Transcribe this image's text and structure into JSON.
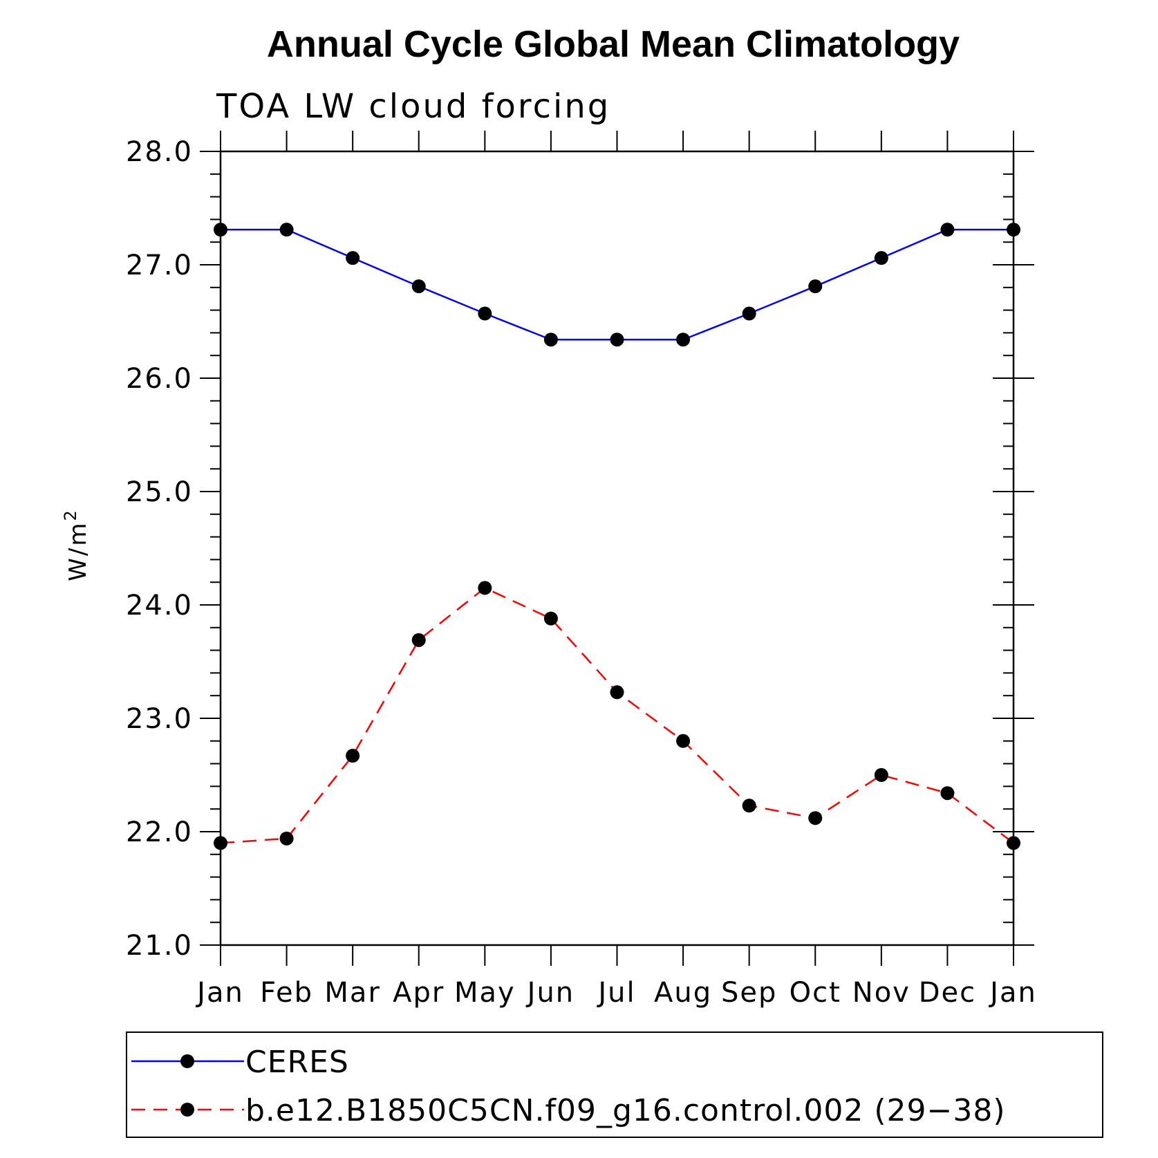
{
  "chart_data": {
    "type": "line",
    "title": "Annual Cycle Global Mean Climatology",
    "subtitle": "TOA LW cloud forcing",
    "xlabel": "",
    "ylabel": "W/m",
    "ylabel_superscript": "2",
    "ylim": [
      21.0,
      28.0
    ],
    "y_ticks": [
      "21.0",
      "22.0",
      "23.0",
      "24.0",
      "25.0",
      "26.0",
      "27.0",
      "28.0"
    ],
    "y_tick_values": [
      21,
      22,
      23,
      24,
      25,
      26,
      27,
      28
    ],
    "y_minor_step": 0.2,
    "categories": [
      "Jan",
      "Feb",
      "Mar",
      "Apr",
      "May",
      "Jun",
      "Jul",
      "Aug",
      "Sep",
      "Oct",
      "Nov",
      "Dec",
      "Jan"
    ],
    "series": [
      {
        "name": "CERES",
        "color": "#0000ff",
        "dash": "solid",
        "marker": "circle",
        "values": [
          27.31,
          27.31,
          27.06,
          26.81,
          26.57,
          26.34,
          26.34,
          26.34,
          26.57,
          26.81,
          27.06,
          27.31,
          27.31
        ]
      },
      {
        "name": "b.e12.B1850C5CN.f09_g16.control.002 (29−38)",
        "color": "#ff0000",
        "dash": "dashed",
        "marker": "circle",
        "values": [
          21.9,
          21.94,
          22.67,
          23.69,
          24.15,
          23.88,
          23.23,
          22.8,
          22.23,
          22.12,
          22.5,
          22.34,
          21.9
        ]
      }
    ],
    "legend_position": "bottom",
    "grid": false
  }
}
